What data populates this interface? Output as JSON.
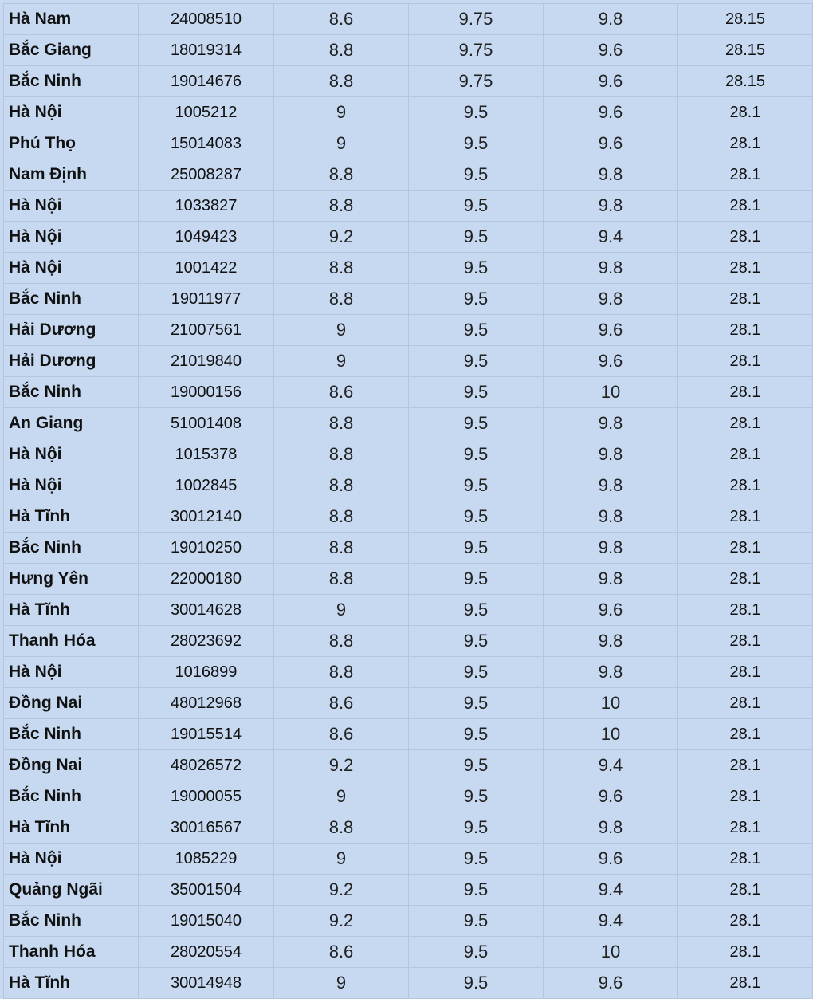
{
  "rows": [
    {
      "province": "Hà Nam",
      "id": "24008510",
      "s1": "8.6",
      "s2": "9.75",
      "s3": "9.8",
      "total": "28.15"
    },
    {
      "province": "Bắc Giang",
      "id": "18019314",
      "s1": "8.8",
      "s2": "9.75",
      "s3": "9.6",
      "total": "28.15"
    },
    {
      "province": "Bắc Ninh",
      "id": "19014676",
      "s1": "8.8",
      "s2": "9.75",
      "s3": "9.6",
      "total": "28.15"
    },
    {
      "province": "Hà Nội",
      "id": "1005212",
      "s1": "9",
      "s2": "9.5",
      "s3": "9.6",
      "total": "28.1"
    },
    {
      "province": "Phú Thọ",
      "id": "15014083",
      "s1": "9",
      "s2": "9.5",
      "s3": "9.6",
      "total": "28.1"
    },
    {
      "province": "Nam Định",
      "id": "25008287",
      "s1": "8.8",
      "s2": "9.5",
      "s3": "9.8",
      "total": "28.1"
    },
    {
      "province": "Hà Nội",
      "id": "1033827",
      "s1": "8.8",
      "s2": "9.5",
      "s3": "9.8",
      "total": "28.1"
    },
    {
      "province": "Hà Nội",
      "id": "1049423",
      "s1": "9.2",
      "s2": "9.5",
      "s3": "9.4",
      "total": "28.1"
    },
    {
      "province": "Hà Nội",
      "id": "1001422",
      "s1": "8.8",
      "s2": "9.5",
      "s3": "9.8",
      "total": "28.1"
    },
    {
      "province": "Bắc Ninh",
      "id": "19011977",
      "s1": "8.8",
      "s2": "9.5",
      "s3": "9.8",
      "total": "28.1"
    },
    {
      "province": "Hải Dương",
      "id": "21007561",
      "s1": "9",
      "s2": "9.5",
      "s3": "9.6",
      "total": "28.1"
    },
    {
      "province": "Hải Dương",
      "id": "21019840",
      "s1": "9",
      "s2": "9.5",
      "s3": "9.6",
      "total": "28.1"
    },
    {
      "province": "Bắc Ninh",
      "id": "19000156",
      "s1": "8.6",
      "s2": "9.5",
      "s3": "10",
      "total": "28.1"
    },
    {
      "province": "An Giang",
      "id": "51001408",
      "s1": "8.8",
      "s2": "9.5",
      "s3": "9.8",
      "total": "28.1"
    },
    {
      "province": "Hà Nội",
      "id": "1015378",
      "s1": "8.8",
      "s2": "9.5",
      "s3": "9.8",
      "total": "28.1"
    },
    {
      "province": "Hà Nội",
      "id": "1002845",
      "s1": "8.8",
      "s2": "9.5",
      "s3": "9.8",
      "total": "28.1"
    },
    {
      "province": "Hà Tĩnh",
      "id": "30012140",
      "s1": "8.8",
      "s2": "9.5",
      "s3": "9.8",
      "total": "28.1"
    },
    {
      "province": "Bắc Ninh",
      "id": "19010250",
      "s1": "8.8",
      "s2": "9.5",
      "s3": "9.8",
      "total": "28.1"
    },
    {
      "province": "Hưng Yên",
      "id": "22000180",
      "s1": "8.8",
      "s2": "9.5",
      "s3": "9.8",
      "total": "28.1"
    },
    {
      "province": "Hà Tĩnh",
      "id": "30014628",
      "s1": "9",
      "s2": "9.5",
      "s3": "9.6",
      "total": "28.1"
    },
    {
      "province": "Thanh Hóa",
      "id": "28023692",
      "s1": "8.8",
      "s2": "9.5",
      "s3": "9.8",
      "total": "28.1"
    },
    {
      "province": "Hà Nội",
      "id": "1016899",
      "s1": "8.8",
      "s2": "9.5",
      "s3": "9.8",
      "total": "28.1"
    },
    {
      "province": "Đồng Nai",
      "id": "48012968",
      "s1": "8.6",
      "s2": "9.5",
      "s3": "10",
      "total": "28.1"
    },
    {
      "province": "Bắc Ninh",
      "id": "19015514",
      "s1": "8.6",
      "s2": "9.5",
      "s3": "10",
      "total": "28.1"
    },
    {
      "province": "Đồng Nai",
      "id": "48026572",
      "s1": "9.2",
      "s2": "9.5",
      "s3": "9.4",
      "total": "28.1"
    },
    {
      "province": "Bắc Ninh",
      "id": "19000055",
      "s1": "9",
      "s2": "9.5",
      "s3": "9.6",
      "total": "28.1"
    },
    {
      "province": "Hà Tĩnh",
      "id": "30016567",
      "s1": "8.8",
      "s2": "9.5",
      "s3": "9.8",
      "total": "28.1"
    },
    {
      "province": "Hà Nội",
      "id": "1085229",
      "s1": "9",
      "s2": "9.5",
      "s3": "9.6",
      "total": "28.1"
    },
    {
      "province": "Quảng Ngãi",
      "id": "35001504",
      "s1": "9.2",
      "s2": "9.5",
      "s3": "9.4",
      "total": "28.1"
    },
    {
      "province": "Bắc Ninh",
      "id": "19015040",
      "s1": "9.2",
      "s2": "9.5",
      "s3": "9.4",
      "total": "28.1"
    },
    {
      "province": "Thanh Hóa",
      "id": "28020554",
      "s1": "8.6",
      "s2": "9.5",
      "s3": "10",
      "total": "28.1"
    },
    {
      "province": "Hà Tĩnh",
      "id": "30014948",
      "s1": "9",
      "s2": "9.5",
      "s3": "9.6",
      "total": "28.1"
    }
  ]
}
